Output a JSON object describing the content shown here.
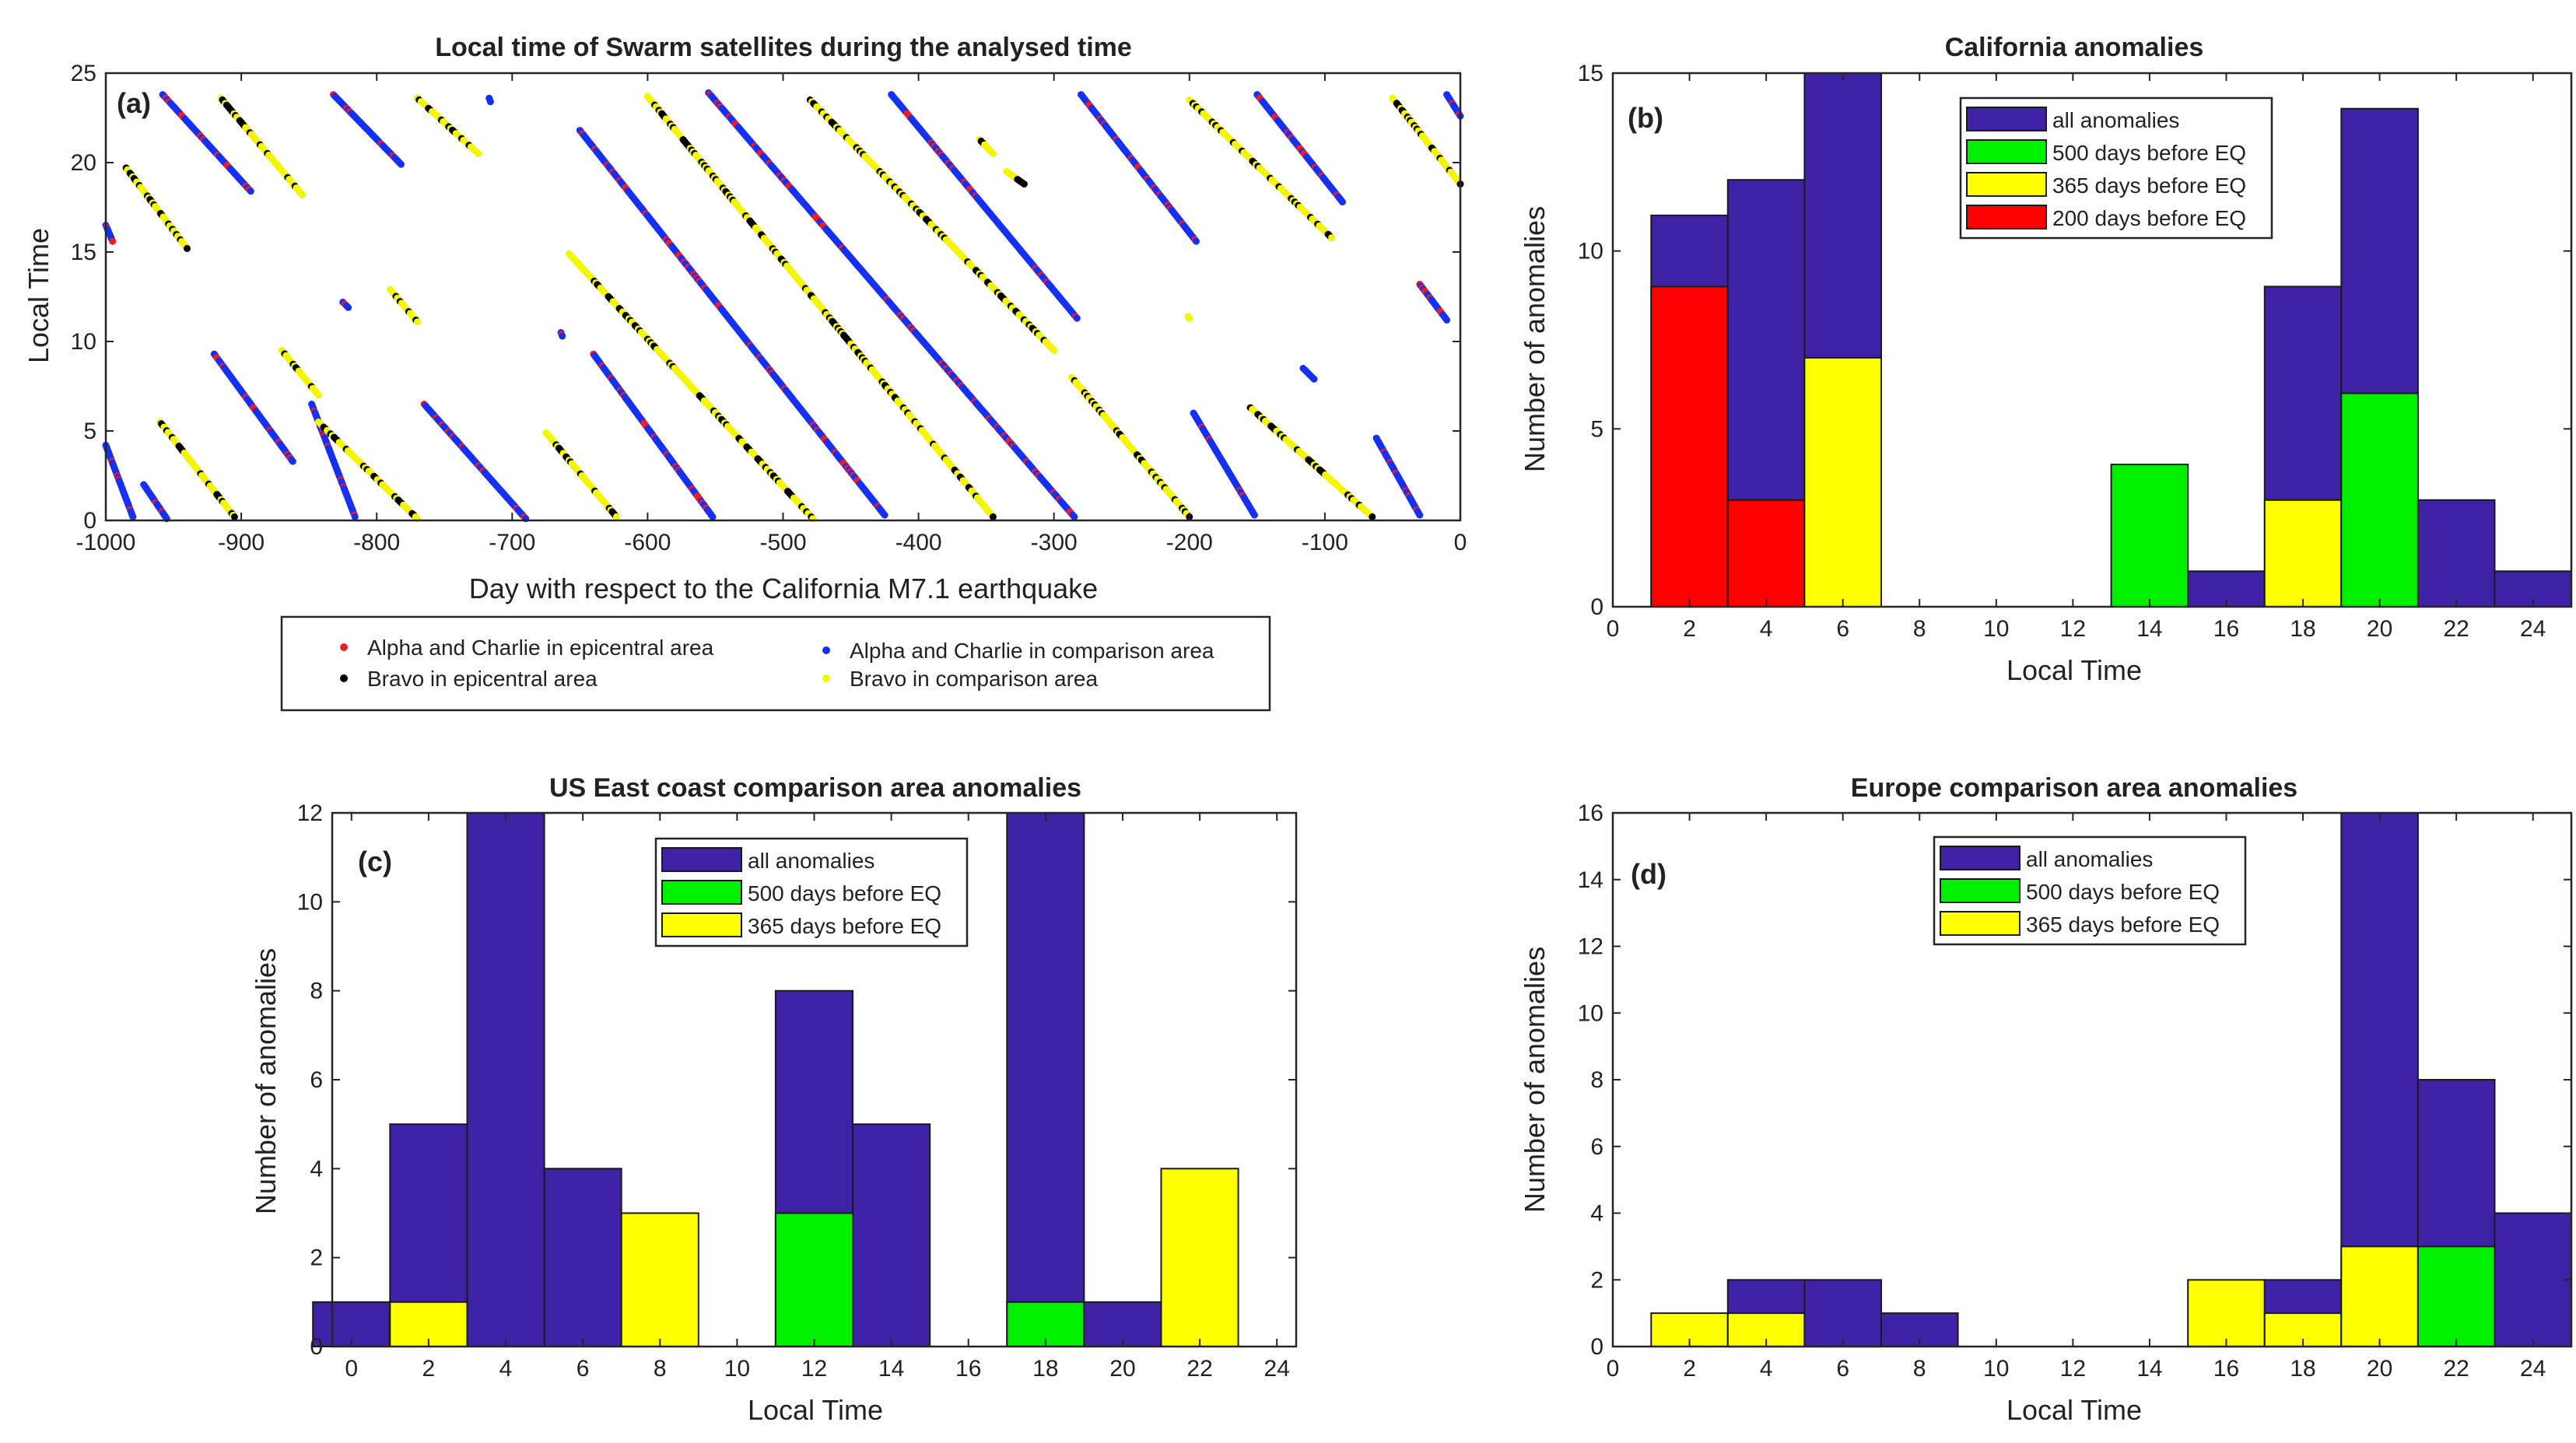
{
  "colors": {
    "all": "#3f21a6",
    "d500": "#00f000",
    "d365": "#ffff00",
    "d200": "#ff0000",
    "alpha_epi": "#ee1c24",
    "bravo_epi": "#000000",
    "alpha_cmp": "#1530f0",
    "bravo_cmp": "#f5f500"
  },
  "chart_data": [
    {
      "id": "a",
      "type": "scatter",
      "panel_label": "(a)",
      "title": "Local time of Swarm satellites during the analysed time",
      "xlabel": "Day with respect to the California M7.1 earthquake",
      "ylabel": "Local Time",
      "xlim": [
        -1000,
        0
      ],
      "ylim": [
        0,
        25
      ],
      "xticks": [
        "-1000",
        "-900",
        "-800",
        "-700",
        "-600",
        "-500",
        "-400",
        "-300",
        "-200",
        "-100",
        "0"
      ],
      "yticks": [
        "0",
        "5",
        "10",
        "15",
        "20",
        "25"
      ],
      "legend": [
        {
          "label": "Alpha and Charlie in epicentral area",
          "color": "alpha_epi"
        },
        {
          "label": "Bravo in epicentral area",
          "color": "bravo_epi"
        },
        {
          "label": "Alpha and Charlie in comparison area",
          "color": "alpha_cmp"
        },
        {
          "label": "Bravo  in comparison area",
          "color": "bravo_cmp"
        }
      ],
      "tracks": [
        {
          "x0": -1000,
          "y0": 16.5,
          "x1": -995,
          "y1": 15.6,
          "group": "alpha"
        },
        {
          "x0": -1000,
          "y0": 4.2,
          "x1": -980,
          "y1": 0.2,
          "group": "alpha"
        },
        {
          "x0": -972,
          "y0": 2,
          "x1": -955,
          "y1": 0.1,
          "group": "alpha"
        },
        {
          "x0": -958,
          "y0": 23.8,
          "x1": -893,
          "y1": 18.4,
          "group": "alpha"
        },
        {
          "x0": -920,
          "y0": 9.3,
          "x1": -862,
          "y1": 3.3,
          "group": "alpha"
        },
        {
          "x0": -825,
          "y0": 12.2,
          "x1": -821,
          "y1": 11.9,
          "group": "alpha"
        },
        {
          "x0": -848,
          "y0": 6.5,
          "x1": -816,
          "y1": 0.2,
          "group": "alpha"
        },
        {
          "x0": -832,
          "y0": 23.8,
          "x1": -782,
          "y1": 19.9,
          "group": "alpha"
        },
        {
          "x0": -765,
          "y0": 6.5,
          "x1": -690,
          "y1": 0.1,
          "group": "alpha"
        },
        {
          "x0": -717,
          "y0": 23.6,
          "x1": -716,
          "y1": 23.4,
          "group": "alpha"
        },
        {
          "x0": -664,
          "y0": 10.5,
          "x1": -663,
          "y1": 10.3,
          "group": "alpha"
        },
        {
          "x0": -640,
          "y0": 9.3,
          "x1": -552,
          "y1": 0.2,
          "group": "alpha"
        },
        {
          "x0": -650,
          "y0": 21.8,
          "x1": -425,
          "y1": 0.3,
          "group": "alpha"
        },
        {
          "x0": -555,
          "y0": 23.9,
          "x1": -285,
          "y1": 0.2,
          "group": "alpha"
        },
        {
          "x0": -420,
          "y0": 23.8,
          "x1": -283,
          "y1": 11.3,
          "group": "alpha"
        },
        {
          "x0": -280,
          "y0": 23.8,
          "x1": -195,
          "y1": 15.6,
          "group": "alpha"
        },
        {
          "x0": -197,
          "y0": 6,
          "x1": -152,
          "y1": 0.3,
          "group": "alpha"
        },
        {
          "x0": -150,
          "y0": 23.8,
          "x1": -87,
          "y1": 17.8,
          "group": "alpha"
        },
        {
          "x0": -116,
          "y0": 8.5,
          "x1": -108,
          "y1": 7.9,
          "group": "alpha"
        },
        {
          "x0": -62,
          "y0": 4.6,
          "x1": -30,
          "y1": 0.3,
          "group": "alpha"
        },
        {
          "x0": -30,
          "y0": 13.2,
          "x1": -10,
          "y1": 11.2,
          "group": "alpha"
        },
        {
          "x0": -10,
          "y0": 23.8,
          "x1": 0,
          "y1": 22.6,
          "group": "alpha"
        },
        {
          "x0": -985,
          "y0": 19.7,
          "x1": -940,
          "y1": 15.2,
          "group": "bravo"
        },
        {
          "x0": -960,
          "y0": 5.5,
          "x1": -905,
          "y1": 0.2,
          "group": "bravo"
        },
        {
          "x0": -915,
          "y0": 23.6,
          "x1": -855,
          "y1": 18.2,
          "group": "bravo"
        },
        {
          "x0": -870,
          "y0": 9.5,
          "x1": -843,
          "y1": 7,
          "group": "bravo"
        },
        {
          "x0": -843,
          "y0": 5.5,
          "x1": -770,
          "y1": 0.1,
          "group": "bravo"
        },
        {
          "x0": -790,
          "y0": 12.9,
          "x1": -770,
          "y1": 11.1,
          "group": "bravo"
        },
        {
          "x0": -770,
          "y0": 23.6,
          "x1": -725,
          "y1": 20.5,
          "group": "bravo"
        },
        {
          "x0": -675,
          "y0": 4.9,
          "x1": -623,
          "y1": 0.2,
          "group": "bravo"
        },
        {
          "x0": -658,
          "y0": 14.9,
          "x1": -478,
          "y1": 0.1,
          "group": "bravo"
        },
        {
          "x0": -600,
          "y0": 23.7,
          "x1": -345,
          "y1": 0.2,
          "group": "bravo"
        },
        {
          "x0": -480,
          "y0": 23.5,
          "x1": -300,
          "y1": 9.5,
          "group": "bravo"
        },
        {
          "x0": -355,
          "y0": 21.3,
          "x1": -345,
          "y1": 20.5,
          "group": "bravo"
        },
        {
          "x0": -335,
          "y0": 19.5,
          "x1": -322,
          "y1": 18.8,
          "group": "bravo"
        },
        {
          "x0": -287,
          "y0": 8,
          "x1": -200,
          "y1": 0.2,
          "group": "bravo"
        },
        {
          "x0": -201,
          "y0": 11.4,
          "x1": -200,
          "y1": 11.3,
          "group": "bravo"
        },
        {
          "x0": -200,
          "y0": 23.5,
          "x1": -95,
          "y1": 15.8,
          "group": "bravo"
        },
        {
          "x0": -155,
          "y0": 6.3,
          "x1": -65,
          "y1": 0.2,
          "group": "bravo"
        },
        {
          "x0": -50,
          "y0": 23.6,
          "x1": 0,
          "y1": 18.8,
          "group": "bravo"
        }
      ]
    },
    {
      "id": "b",
      "type": "bar",
      "panel_label": "(b)",
      "title": "California anomalies",
      "xlabel": "Local Time",
      "ylabel": "Number of anomalies",
      "xlim": [
        0,
        25
      ],
      "ylim": [
        0,
        15
      ],
      "xticks": [
        "0",
        "2",
        "4",
        "6",
        "8",
        "10",
        "12",
        "14",
        "16",
        "18",
        "20",
        "22",
        "24"
      ],
      "yticks": [
        "0",
        "5",
        "10",
        "15"
      ],
      "legend": [
        {
          "label": "all anomalies",
          "color": "all"
        },
        {
          "label": "500 days before EQ",
          "color": "d500"
        },
        {
          "label": "365 days before EQ",
          "color": "d365"
        },
        {
          "label": "200 days before EQ",
          "color": "d200"
        }
      ],
      "bin_centers": [
        2,
        4,
        6,
        14,
        16,
        18,
        20,
        22,
        24
      ],
      "series": [
        {
          "name": "all anomalies",
          "color": "all",
          "values": [
            11,
            12,
            15,
            0,
            1,
            9,
            14,
            3,
            1
          ]
        },
        {
          "name": "500 days before EQ",
          "color": "d500",
          "values": [
            0,
            0,
            0,
            4,
            0,
            0,
            6,
            0,
            0
          ]
        },
        {
          "name": "365 days before EQ",
          "color": "d365",
          "values": [
            0,
            0,
            7,
            0,
            0,
            3,
            0,
            0,
            0
          ]
        },
        {
          "name": "200 days before EQ",
          "color": "d200",
          "values": [
            9,
            3,
            0,
            0,
            0,
            0,
            0,
            0,
            0
          ]
        }
      ]
    },
    {
      "id": "c",
      "type": "bar",
      "panel_label": "(c)",
      "title": "US East coast comparison area anomalies",
      "xlabel": "Local Time",
      "ylabel": "Number of anomalies",
      "xlim": [
        -0.5,
        24.5
      ],
      "ylim": [
        0,
        12
      ],
      "xticks": [
        "0",
        "2",
        "4",
        "6",
        "8",
        "10",
        "12",
        "14",
        "16",
        "18",
        "20",
        "22",
        "24"
      ],
      "yticks": [
        "0",
        "2",
        "4",
        "6",
        "8",
        "10",
        "12"
      ],
      "legend": [
        {
          "label": "all anomalies",
          "color": "all"
        },
        {
          "label": "500 days before EQ",
          "color": "d500"
        },
        {
          "label": "365 days before EQ",
          "color": "d365"
        }
      ],
      "bin_centers": [
        0,
        2,
        4,
        6,
        8,
        12,
        14,
        18,
        20,
        22
      ],
      "series": [
        {
          "name": "all anomalies",
          "color": "all",
          "values": [
            1,
            5,
            12,
            4,
            0,
            8,
            5,
            12,
            1,
            0
          ]
        },
        {
          "name": "500 days before EQ",
          "color": "d500",
          "values": [
            0,
            0,
            0,
            0,
            0,
            3,
            0,
            1,
            0,
            0
          ]
        },
        {
          "name": "365 days before EQ",
          "color": "d365",
          "values": [
            0,
            1,
            0,
            0,
            3,
            0,
            0,
            0,
            0,
            4
          ]
        }
      ]
    },
    {
      "id": "d",
      "type": "bar",
      "panel_label": "(d)",
      "title": "Europe comparison area anomalies",
      "xlabel": "Local Time",
      "ylabel": "Number of anomalies",
      "xlim": [
        0,
        25
      ],
      "ylim": [
        0,
        16
      ],
      "xticks": [
        "0",
        "2",
        "4",
        "6",
        "8",
        "10",
        "12",
        "14",
        "16",
        "18",
        "20",
        "22",
        "24"
      ],
      "yticks": [
        "0",
        "2",
        "4",
        "6",
        "8",
        "10",
        "12",
        "14",
        "16"
      ],
      "legend": [
        {
          "label": "all anomalies",
          "color": "all"
        },
        {
          "label": "500 days before EQ",
          "color": "d500"
        },
        {
          "label": "365 days before EQ",
          "color": "d365"
        }
      ],
      "bin_centers": [
        2,
        4,
        6,
        8,
        16,
        18,
        20,
        22,
        24
      ],
      "series": [
        {
          "name": "all anomalies",
          "color": "all",
          "values": [
            0,
            2,
            2,
            1,
            0,
            2,
            16,
            8,
            4
          ]
        },
        {
          "name": "500 days before EQ",
          "color": "d500",
          "values": [
            0,
            0,
            0,
            0,
            0,
            0,
            0,
            3,
            0
          ]
        },
        {
          "name": "365 days before EQ",
          "color": "d365",
          "values": [
            1,
            1,
            0,
            0,
            2,
            1,
            3,
            0,
            0
          ]
        }
      ]
    }
  ]
}
